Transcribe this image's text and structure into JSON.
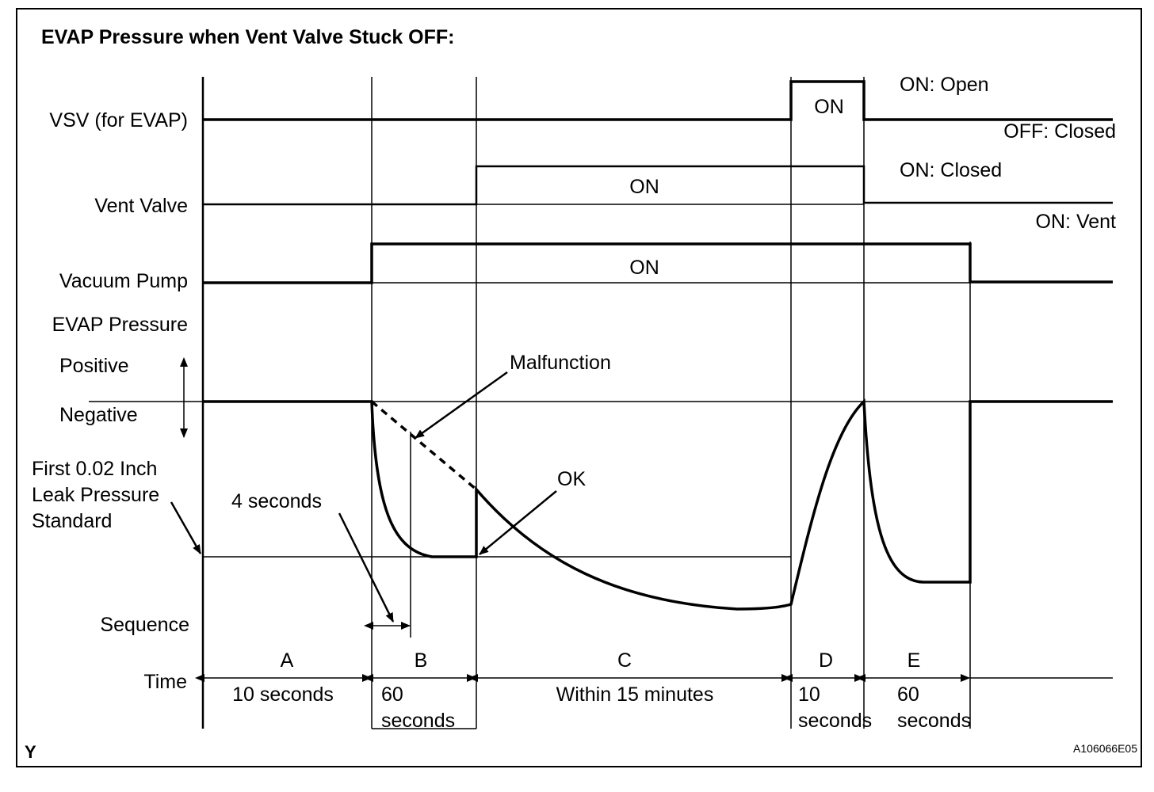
{
  "title": "EVAP Pressure when Vent Valve Stuck OFF:",
  "rows": {
    "vsv": "VSV (for EVAP)",
    "vent_valve": "Vent Valve",
    "vacuum_pump": "Vacuum Pump",
    "evap_pressure": "EVAP Pressure",
    "sequence": "Sequence",
    "time": "Time"
  },
  "pressure": {
    "positive": "Positive",
    "negative": "Negative",
    "standard_line1": "First 0.02 Inch",
    "standard_line2": "Leak Pressure",
    "standard_line3": "Standard"
  },
  "states": {
    "vsv_on": "ON",
    "vsv_on_meaning": "ON: Open",
    "vsv_off_meaning": "OFF: Closed",
    "vent_on": "ON",
    "vent_on_meaning": "ON: Closed",
    "vent_off_meaning": "ON: Vent",
    "pump_on": "ON"
  },
  "annotations": {
    "four_seconds": "4 seconds",
    "malfunction": "Malfunction",
    "ok": "OK"
  },
  "sequence": [
    {
      "id": "A",
      "time_line1": "10 seconds",
      "time_line2": ""
    },
    {
      "id": "B",
      "time_line1": "60",
      "time_line2": "seconds"
    },
    {
      "id": "C",
      "time_line1": "Within 15 minutes",
      "time_line2": ""
    },
    {
      "id": "D",
      "time_line1": "10",
      "time_line2": "seconds"
    },
    {
      "id": "E",
      "time_line1": "60",
      "time_line2": "seconds"
    }
  ],
  "corner_left": "Y",
  "figure_id": "A106066E05"
}
